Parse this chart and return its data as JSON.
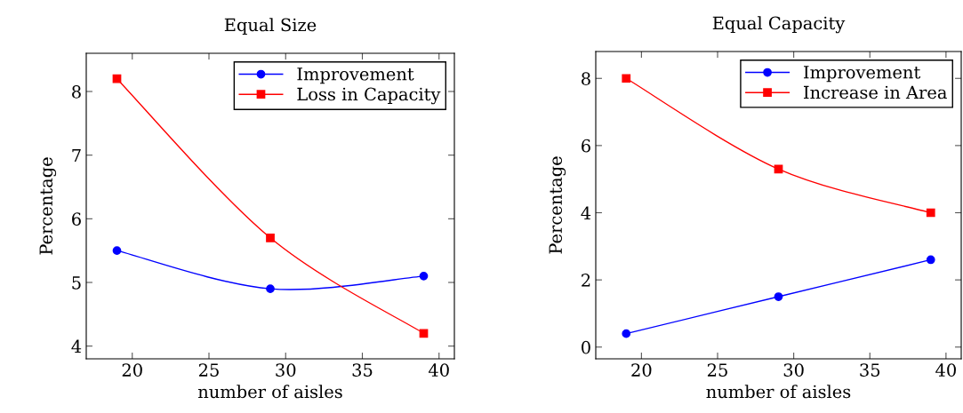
{
  "chart_data": [
    {
      "type": "line",
      "title": "Equal Size",
      "xlabel": "number of aisles",
      "ylabel": "Percentage",
      "x": [
        19,
        29,
        39
      ],
      "xlim": [
        17,
        41
      ],
      "xticks": [
        20,
        25,
        30,
        35,
        40
      ],
      "ylim": [
        3.8,
        8.6
      ],
      "yticks": [
        4,
        5,
        6,
        7,
        8
      ],
      "grid": false,
      "legend": "top right",
      "line_style": "solid",
      "series": [
        {
          "name": "Improvement",
          "color": "#0000ff",
          "marker": "circle",
          "values": [
            5.5,
            4.9,
            5.1
          ]
        },
        {
          "name": "Loss in Capacity",
          "color": "#ff0000",
          "marker": "square",
          "values": [
            8.2,
            5.7,
            4.2
          ]
        }
      ]
    },
    {
      "type": "line",
      "title": "Equal Capacity",
      "xlabel": "number of aisles",
      "ylabel": "Percentage",
      "x": [
        19,
        29,
        39
      ],
      "xlim": [
        17,
        41
      ],
      "xticks": [
        20,
        25,
        30,
        35,
        40
      ],
      "ylim": [
        -0.35,
        8.8
      ],
      "yticks": [
        0,
        2,
        4,
        6,
        8
      ],
      "grid": false,
      "legend": "top right",
      "line_style": "solid",
      "series": [
        {
          "name": "Improvement",
          "color": "#0000ff",
          "marker": "circle",
          "values": [
            0.4,
            1.5,
            2.6
          ]
        },
        {
          "name": "Increase in Area",
          "color": "#ff0000",
          "marker": "square",
          "values": [
            8.0,
            5.3,
            4.0
          ]
        }
      ]
    }
  ]
}
